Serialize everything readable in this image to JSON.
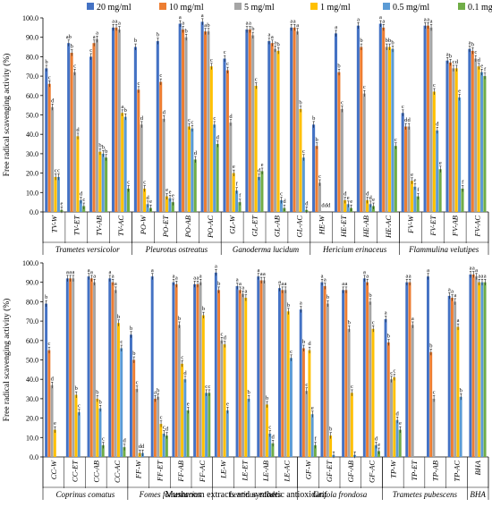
{
  "chart_data": [
    {
      "type": "bar",
      "ylabel": "Free radical scavenging activity (%)",
      "ylim": [
        0,
        100
      ],
      "yticks": [
        "0.0",
        "10.0",
        "20.0",
        "30.0",
        "40.0",
        "50.0",
        "60.0",
        "70.0",
        "80.0",
        "90.0",
        "100.0"
      ],
      "categories": [
        "TV-W",
        "TV-ET",
        "TV-AB",
        "TV-AC",
        "PO-W",
        "PO-ET",
        "PO-AB",
        "PO-AC",
        "GL-W",
        "GL-ET",
        "GL-AB",
        "GL-AC",
        "HE-W",
        "HE-ET",
        "HE-AB",
        "HE-AC",
        "FV-W",
        "FV-ET",
        "FV-AB",
        "FV-AC"
      ],
      "groups": [
        {
          "label": "Trametes versicolor",
          "count": 4
        },
        {
          "label": "Pleurotus ostreatus",
          "count": 4
        },
        {
          "label": "Ganoderma lucidum",
          "count": 4
        },
        {
          "label": "Hericium erinaceus",
          "count": 4
        },
        {
          "label": "Flammulina velutipes",
          "count": 4
        }
      ],
      "series": [
        {
          "name": "20 mg/ml",
          "values": [
            74,
            87,
            80,
            95,
            85,
            88,
            97,
            98,
            79,
            94,
            88,
            95,
            45,
            92,
            96,
            97,
            51,
            96,
            78,
            84
          ]
        },
        {
          "name": "10 mg/ml",
          "values": [
            66,
            82,
            87,
            95,
            63,
            67,
            94,
            93,
            73,
            94,
            87,
            95,
            34,
            72,
            85,
            95,
            44,
            96,
            77,
            83
          ]
        },
        {
          "name": "5 mg/ml",
          "values": [
            54,
            72,
            89,
            94,
            45,
            48,
            90,
            93,
            46,
            91,
            84,
            93,
            15,
            53,
            61,
            85,
            44,
            95,
            74,
            79
          ]
        },
        {
          "name": "1 mg/ml",
          "values": [
            18,
            39,
            31,
            51,
            12,
            8,
            44,
            75,
            20,
            65,
            83,
            53,
            0,
            6,
            6,
            85,
            16,
            62,
            74,
            75
          ]
        },
        {
          "name": "0.5 mg/ml",
          "values": [
            18,
            6,
            30,
            49,
            4,
            7,
            43,
            45,
            11,
            18,
            6,
            28,
            0,
            4,
            4,
            84,
            13,
            42,
            59,
            72
          ]
        },
        {
          "name": "0.1 mg/ml",
          "values": [
            1,
            3,
            28,
            12,
            2,
            5,
            27,
            35,
            5,
            21,
            2,
            1,
            0,
            2,
            3,
            34,
            8,
            22,
            12,
            70
          ]
        }
      ],
      "letters": [
        [
          "b",
          "c",
          "d",
          "c",
          "c",
          "e"
        ],
        [
          "ab",
          "b",
          "c",
          "d",
          "d",
          "c"
        ],
        [
          "c",
          "a",
          "a",
          "b",
          "b",
          "b"
        ],
        [
          "a",
          "a",
          "a",
          "a",
          "b",
          "c"
        ],
        [
          "b",
          "c",
          "d",
          "c",
          "d",
          "e"
        ],
        [
          "b",
          "c",
          "d",
          "e",
          "e",
          "e"
        ],
        [
          "a",
          "a",
          "b",
          "c",
          "c",
          "d"
        ],
        [
          "a",
          "a",
          "b",
          "c",
          "c",
          "d"
        ],
        [
          "c",
          "c",
          "d",
          "e",
          "f",
          "f"
        ],
        [
          "a",
          "a",
          "b",
          "c",
          "d",
          "e"
        ],
        [
          "a",
          "a",
          "a",
          "b",
          "c",
          "d"
        ],
        [
          "a",
          "a",
          "a",
          "b",
          "c",
          "d"
        ],
        [
          "b",
          "b",
          "c",
          "d",
          "d",
          "d"
        ],
        [
          "a",
          "b",
          "c",
          "d",
          "e",
          "e"
        ],
        [
          "a",
          "b",
          "c",
          "d",
          "d",
          "e"
        ],
        [
          "a",
          "a",
          "b",
          "b",
          "b",
          "c"
        ],
        [
          "c",
          "d",
          "d",
          "e",
          "e",
          "f"
        ],
        [
          "a",
          "a",
          "a",
          "c",
          "d",
          "e"
        ],
        [
          "a",
          "b",
          "c",
          "d",
          "e",
          "f"
        ],
        [
          "a",
          "b",
          "c",
          "d",
          "e",
          "f"
        ]
      ]
    },
    {
      "type": "bar",
      "xlabel": "Mushroom extracts and synthetic antioxidant",
      "ylabel": "Free radical scavenging activity (%)",
      "ylim": [
        0,
        100
      ],
      "yticks": [
        "0.0",
        "10.0",
        "20.0",
        "30.0",
        "40.0",
        "50.0",
        "60.0",
        "70.0",
        "80.0",
        "90.0",
        "100.0"
      ],
      "categories": [
        "CC-W",
        "CC-ET",
        "CC-AB",
        "CC-AC",
        "FF-W",
        "FF-ET",
        "FF-AB",
        "FF-AC",
        "LE-W",
        "LE-ET",
        "LE-AB",
        "LE-AC",
        "GF-W",
        "GF-ET",
        "GF-AB",
        "GF-AC",
        "TP-W",
        "TP-ET",
        "TP-AB",
        "TP-AC",
        "BHA"
      ],
      "groups": [
        {
          "label": "Coprinus comatus",
          "count": 4
        },
        {
          "label": "Fomes fomentarius",
          "count": 4
        },
        {
          "label": "Lentinus edodes",
          "count": 4
        },
        {
          "label": "Grifola frondosa",
          "count": 4
        },
        {
          "label": "Trametes pubescens",
          "count": 4
        },
        {
          "label": "BHA",
          "count": 1
        }
      ],
      "series": [
        {
          "name": "20 mg/ml",
          "values": [
            79,
            92,
            93,
            92,
            63,
            93,
            90,
            89,
            95,
            88,
            93,
            87,
            76,
            90,
            86,
            92,
            71,
            90,
            93,
            83,
            94
          ]
        },
        {
          "name": "10 mg/ml",
          "values": [
            55,
            92,
            92,
            90,
            50,
            30,
            89,
            89,
            86,
            86,
            91,
            86,
            56,
            88,
            86,
            90,
            59,
            90,
            54,
            82,
            94
          ]
        },
        {
          "name": "5 mg/ml",
          "values": [
            37,
            92,
            90,
            86,
            35,
            31,
            68,
            90,
            60,
            84,
            91,
            86,
            34,
            79,
            66,
            80,
            40,
            68,
            30,
            80,
            93
          ]
        },
        {
          "name": "1 mg/ml",
          "values": [
            14,
            32,
            30,
            69,
            2,
            17,
            48,
            73,
            58,
            82,
            27,
            75,
            55,
            11,
            33,
            66,
            41,
            0,
            0,
            67,
            90
          ]
        },
        {
          "name": "0.5 mg/ml",
          "values": [
            0,
            23,
            25,
            56,
            2,
            12,
            40,
            33,
            24,
            30,
            12,
            51,
            22,
            1,
            1,
            6,
            19,
            0,
            0,
            31,
            90
          ]
        },
        {
          "name": "0.1 mg/ml",
          "values": [
            0,
            0,
            6,
            5,
            0,
            11,
            24,
            33,
            0,
            0,
            7,
            0,
            6,
            0,
            0,
            3,
            14,
            0,
            0,
            0,
            90
          ]
        }
      ],
      "letters": [
        [
          "b",
          "c",
          "d",
          "e",
          "",
          ""
        ],
        [
          "a",
          "a",
          "a",
          "b",
          "c",
          ""
        ],
        [
          "a",
          "a",
          "a",
          "b",
          "b",
          "c"
        ],
        [
          "a",
          "a",
          "a",
          "b",
          "c",
          "d"
        ],
        [
          "b",
          "b",
          "c",
          "d",
          "d",
          ""
        ],
        [
          "a",
          "a",
          "b",
          "c",
          "c",
          "d"
        ],
        [
          "a",
          "a",
          "b",
          "c",
          "d",
          "e"
        ],
        [
          "a",
          "a",
          "a",
          "b",
          "c",
          "c"
        ],
        [
          "a",
          "b",
          "c",
          "d",
          "e",
          ""
        ],
        [
          "a",
          "a",
          "a",
          "a",
          "b",
          ""
        ],
        [
          "a",
          "a",
          "a",
          "b",
          "c",
          "d"
        ],
        [
          "a",
          "a",
          "a",
          "b",
          "c",
          ""
        ],
        [
          "a",
          "b",
          "c",
          "d",
          "e",
          "f"
        ],
        [
          "a",
          "a",
          "b",
          "b",
          "",
          ""
        ],
        [
          "a",
          "a",
          "b",
          "c",
          "",
          ""
        ],
        [
          "a",
          "a",
          "b",
          "c",
          "d",
          "e"
        ],
        [
          "a",
          "b",
          "c",
          "c",
          "d",
          "e"
        ],
        [
          "a",
          "a",
          "a",
          "",
          "",
          ""
        ],
        [
          "a",
          "b",
          "c",
          "",
          "",
          ""
        ],
        [
          "a",
          "a",
          "a",
          "a",
          "b",
          ""
        ],
        [
          "a",
          "a",
          "a",
          "a",
          "a",
          "a"
        ]
      ]
    }
  ],
  "legend": {
    "placement": "top",
    "items": [
      "20 mg/ml",
      "10 mg/ml",
      "5 mg/ml",
      "1 mg/ml",
      "0.5 mg/ml",
      "0.1 mg/ml"
    ]
  },
  "colors": [
    "#4472c4",
    "#ed7d31",
    "#a5a5a5",
    "#ffc000",
    "#5b9bd5",
    "#70ad47"
  ]
}
